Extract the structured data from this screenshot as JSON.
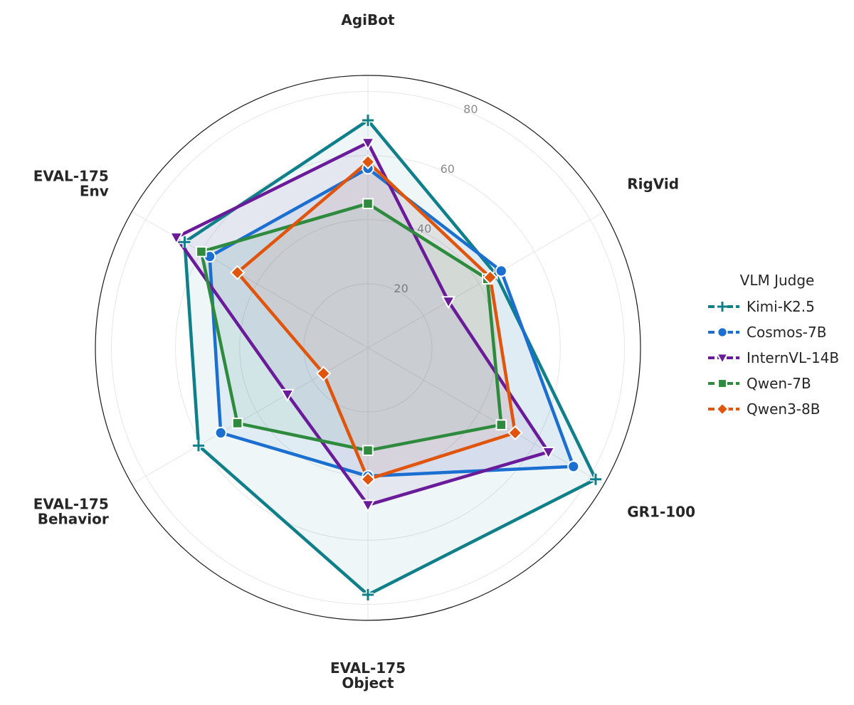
{
  "chart_data": {
    "type": "radar",
    "axes": [
      [
        "AgiBot"
      ],
      [
        "RigVid"
      ],
      [
        "GR1-100"
      ],
      [
        "EVAL-175",
        "Object"
      ],
      [
        "EVAL-175",
        "Behavior"
      ],
      [
        "EVAL-175",
        "Env"
      ]
    ],
    "rlim": [
      0,
      85
    ],
    "ticks": [
      20,
      40,
      60,
      80
    ],
    "tick_labels": [
      "20",
      "40",
      "60",
      "80"
    ],
    "legend_title": "VLM Judge",
    "legend_position": "right",
    "series": [
      {
        "name": "Kimi-K2.5",
        "color": "#0f7f8a",
        "marker": "plus",
        "values": [
          71,
          46,
          82,
          77,
          61,
          66
        ]
      },
      {
        "name": "Cosmos-7B",
        "color": "#1a6fd0",
        "marker": "circle",
        "values": [
          56,
          48,
          74,
          40,
          53,
          57
        ]
      },
      {
        "name": "InternVL-14B",
        "color": "#6a1b9a",
        "marker": "triangle-down",
        "values": [
          64,
          29,
          65,
          49,
          29,
          69
        ]
      },
      {
        "name": "Qwen-7B",
        "color": "#2e8b3e",
        "marker": "square",
        "values": [
          45,
          43,
          48,
          32,
          47,
          60
        ]
      },
      {
        "name": "Qwen3-8B",
        "color": "#e0540b",
        "marker": "diamond",
        "values": [
          58,
          44,
          53,
          41,
          16,
          47
        ]
      }
    ]
  }
}
